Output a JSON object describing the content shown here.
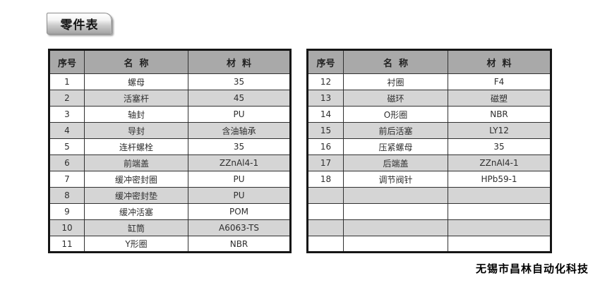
{
  "title": "零件表",
  "footer": "无锡市昌林自动化科技",
  "table_headers": {
    "no": "序号",
    "name": "名  称",
    "material": "材  料"
  },
  "left_table": {
    "rows": [
      {
        "no": "1",
        "name": "螺母",
        "material": "35"
      },
      {
        "no": "2",
        "name": "活塞杆",
        "material": "45"
      },
      {
        "no": "3",
        "name": "轴封",
        "material": "PU"
      },
      {
        "no": "4",
        "name": "导封",
        "material": "含油轴承"
      },
      {
        "no": "5",
        "name": "连杆螺栓",
        "material": "35"
      },
      {
        "no": "6",
        "name": "前端盖",
        "material": "ZZnAl4-1"
      },
      {
        "no": "7",
        "name": "缓冲密封圈",
        "material": "PU"
      },
      {
        "no": "8",
        "name": "缓冲密封垫",
        "material": "PU"
      },
      {
        "no": "9",
        "name": "缓冲活塞",
        "material": "POM"
      },
      {
        "no": "10",
        "name": "缸筒",
        "material": "A6063-TS"
      },
      {
        "no": "11",
        "name": "Y形圈",
        "material": "NBR"
      }
    ],
    "empty_rows": 0
  },
  "right_table": {
    "rows": [
      {
        "no": "12",
        "name": "衬圈",
        "material": "F4"
      },
      {
        "no": "13",
        "name": "磁环",
        "material": "磁塑"
      },
      {
        "no": "14",
        "name": "O形圈",
        "material": "NBR"
      },
      {
        "no": "15",
        "name": "前后活塞",
        "material": "LY12"
      },
      {
        "no": "16",
        "name": "压紧螺母",
        "material": "35"
      },
      {
        "no": "17",
        "name": "后端盖",
        "material": "ZZnAl4-1"
      },
      {
        "no": "18",
        "name": "调节阀针",
        "material": "HPb59-1"
      }
    ],
    "empty_rows": 4
  },
  "colors": {
    "header_bg": "#a9a9a9",
    "alt_row_bg": "#d5d5d5",
    "table_border": "#161616",
    "text": "#2e2e2e"
  }
}
